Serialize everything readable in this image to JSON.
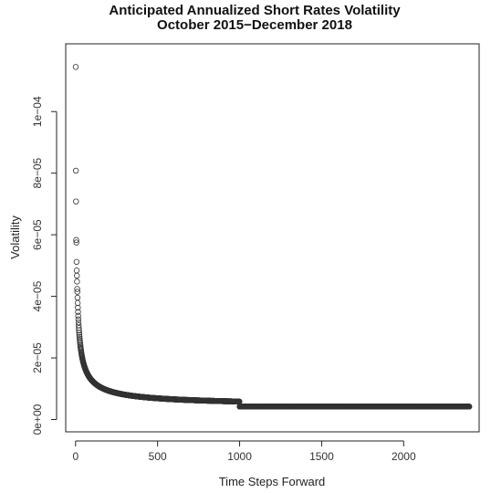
{
  "chart_data": {
    "type": "scatter",
    "title": "Anticipated Annualized Short Rates Volatility",
    "subtitle": "October 2015−December 2018",
    "xlabel": "Time Steps Forward",
    "ylabel": "Volatility",
    "xlim": [
      -60,
      2460
    ],
    "ylim": [
      -4e-06,
      0.000122
    ],
    "x_ticks": [
      0,
      500,
      1000,
      1500,
      2000
    ],
    "x_tick_labels": [
      "0",
      "500",
      "1000",
      "1500",
      "2000"
    ],
    "y_ticks": [
      0,
      2e-05,
      4e-05,
      6e-05,
      8e-05,
      0.0001
    ],
    "y_tick_labels": [
      "0e+00",
      "2e−05",
      "4e−05",
      "6e−05",
      "8e−05",
      "1e−04"
    ],
    "grid": false,
    "marker": "open-circle",
    "marker_color": "#333333",
    "n_points": 2400,
    "x_start": 1,
    "leading_values": [
      0.0001145,
      8.08e-05,
      7.08e-05,
      5.83e-05,
      5.75e-05,
      5.12e-05,
      4.84e-05,
      4.67e-05,
      4.48e-05,
      4.24e-05
    ],
    "decay": {
      "comment_free_params": true,
      "floor": 4.2e-06,
      "amplitude": 3.95e-05,
      "power": 0.72,
      "scale": 12,
      "plateau_from_x": 1000
    }
  }
}
